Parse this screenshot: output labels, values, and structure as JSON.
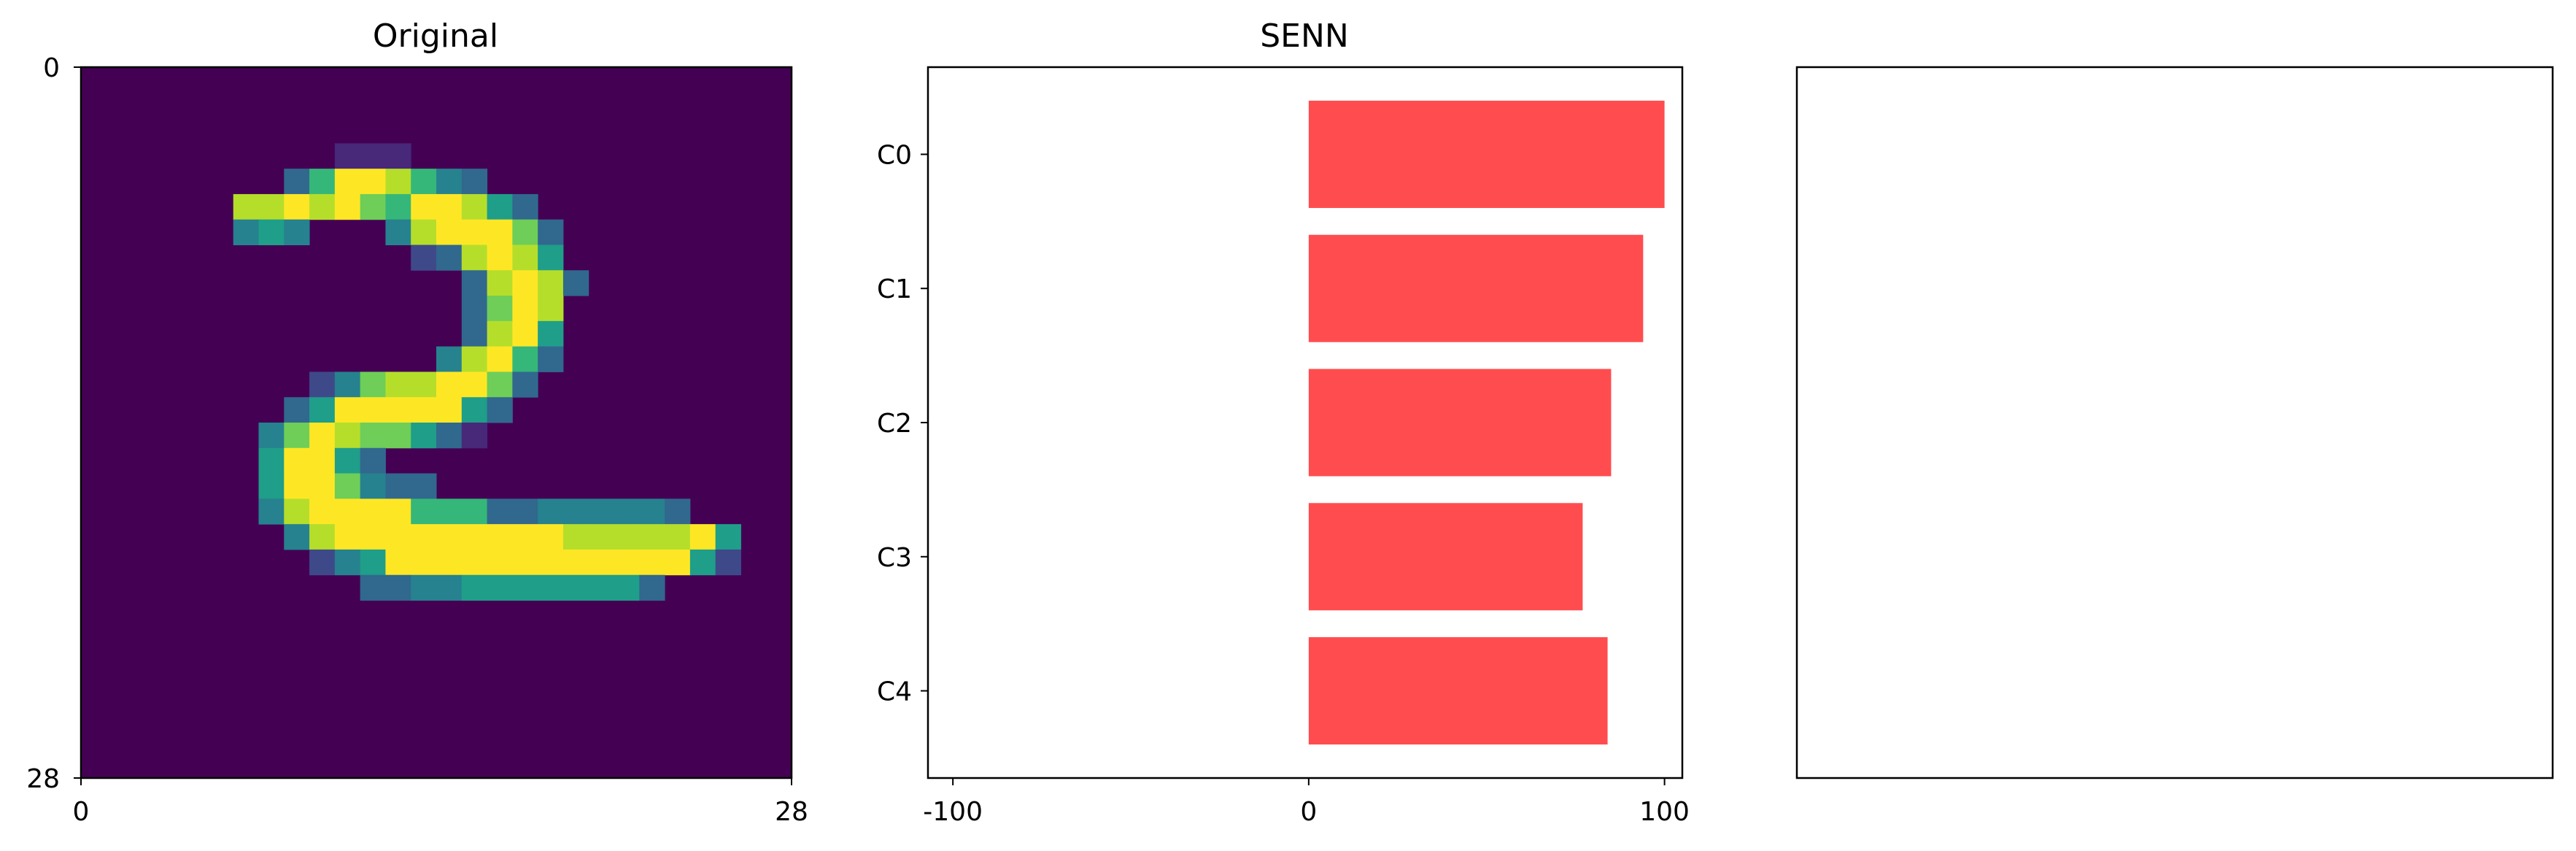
{
  "colors": {
    "bar": "#ff4d4f",
    "viridis": [
      "#440154",
      "#482878",
      "#3e4989",
      "#31688e",
      "#26828e",
      "#1f9e89",
      "#35b779",
      "#6ece58",
      "#b5de2b",
      "#fde725"
    ]
  },
  "chart_data": [
    {
      "type": "heatmap",
      "title": "Original",
      "grid_size": 28,
      "x_ticks": [
        "0",
        "28"
      ],
      "y_ticks": [
        "0",
        "28"
      ],
      "colormap": "viridis",
      "runs": [
        [
          3,
          10,
          13,
          0.15
        ],
        [
          4,
          8,
          9,
          0.35
        ],
        [
          4,
          9,
          10,
          0.65
        ],
        [
          4,
          10,
          12,
          1.0
        ],
        [
          4,
          12,
          13,
          0.9
        ],
        [
          4,
          13,
          14,
          0.7
        ],
        [
          4,
          14,
          15,
          0.4
        ],
        [
          4,
          15,
          16,
          0.3
        ],
        [
          5,
          6,
          7,
          0.85
        ],
        [
          5,
          7,
          8,
          0.9
        ],
        [
          5,
          8,
          9,
          1.0
        ],
        [
          5,
          9,
          10,
          0.85
        ],
        [
          5,
          10,
          11,
          1.0
        ],
        [
          5,
          11,
          12,
          0.8
        ],
        [
          5,
          12,
          13,
          0.65
        ],
        [
          5,
          13,
          14,
          0.95
        ],
        [
          5,
          14,
          15,
          1.0
        ],
        [
          5,
          15,
          16,
          0.9
        ],
        [
          5,
          16,
          17,
          0.55
        ],
        [
          5,
          17,
          18,
          0.3
        ],
        [
          6,
          6,
          7,
          0.45
        ],
        [
          6,
          7,
          8,
          0.55
        ],
        [
          6,
          8,
          9,
          0.4
        ],
        [
          6,
          12,
          13,
          0.4
        ],
        [
          6,
          13,
          14,
          0.85
        ],
        [
          6,
          14,
          17,
          1.0
        ],
        [
          6,
          17,
          18,
          0.75
        ],
        [
          6,
          18,
          19,
          0.3
        ],
        [
          7,
          13,
          14,
          0.2
        ],
        [
          7,
          14,
          15,
          0.35
        ],
        [
          7,
          15,
          16,
          0.9
        ],
        [
          7,
          16,
          17,
          1.0
        ],
        [
          7,
          17,
          18,
          0.9
        ],
        [
          7,
          18,
          19,
          0.6
        ],
        [
          8,
          15,
          16,
          0.3
        ],
        [
          8,
          16,
          17,
          0.85
        ],
        [
          8,
          17,
          18,
          1.0
        ],
        [
          8,
          18,
          19,
          0.9
        ],
        [
          8,
          19,
          20,
          0.35
        ],
        [
          9,
          15,
          16,
          0.3
        ],
        [
          9,
          16,
          17,
          0.8
        ],
        [
          9,
          17,
          18,
          1.0
        ],
        [
          9,
          18,
          19,
          0.85
        ],
        [
          10,
          15,
          16,
          0.3
        ],
        [
          10,
          16,
          17,
          0.85
        ],
        [
          10,
          17,
          18,
          1.0
        ],
        [
          10,
          18,
          19,
          0.6
        ],
        [
          11,
          14,
          15,
          0.45
        ],
        [
          11,
          15,
          16,
          0.9
        ],
        [
          11,
          16,
          17,
          1.0
        ],
        [
          11,
          17,
          18,
          0.65
        ],
        [
          11,
          18,
          19,
          0.3
        ],
        [
          12,
          9,
          10,
          0.2
        ],
        [
          12,
          10,
          11,
          0.45
        ],
        [
          12,
          11,
          12,
          0.75
        ],
        [
          12,
          12,
          13,
          0.85
        ],
        [
          12,
          13,
          14,
          0.9
        ],
        [
          12,
          14,
          15,
          0.95
        ],
        [
          12,
          15,
          16,
          1.0
        ],
        [
          12,
          16,
          17,
          0.8
        ],
        [
          12,
          17,
          18,
          0.3
        ],
        [
          13,
          8,
          9,
          0.3
        ],
        [
          13,
          9,
          10,
          0.6
        ],
        [
          13,
          10,
          14,
          1.0
        ],
        [
          13,
          14,
          15,
          0.95
        ],
        [
          13,
          15,
          16,
          0.6
        ],
        [
          13,
          16,
          17,
          0.3
        ],
        [
          14,
          7,
          8,
          0.45
        ],
        [
          14,
          8,
          9,
          0.75
        ],
        [
          14,
          9,
          10,
          1.0
        ],
        [
          14,
          10,
          11,
          0.85
        ],
        [
          14,
          11,
          13,
          0.75
        ],
        [
          14,
          13,
          14,
          0.5
        ],
        [
          14,
          14,
          15,
          0.3
        ],
        [
          14,
          15,
          16,
          0.15
        ],
        [
          15,
          7,
          8,
          0.55
        ],
        [
          15,
          8,
          10,
          1.0
        ],
        [
          15,
          10,
          11,
          0.6
        ],
        [
          15,
          11,
          12,
          0.3
        ],
        [
          16,
          7,
          8,
          0.55
        ],
        [
          16,
          8,
          10,
          1.0
        ],
        [
          16,
          10,
          11,
          0.75
        ],
        [
          16,
          11,
          12,
          0.4
        ],
        [
          16,
          12,
          13,
          0.35
        ],
        [
          16,
          13,
          14,
          0.3
        ],
        [
          17,
          7,
          8,
          0.4
        ],
        [
          17,
          8,
          9,
          0.9
        ],
        [
          17,
          9,
          13,
          1.0
        ],
        [
          17,
          13,
          16,
          0.7
        ],
        [
          17,
          16,
          17,
          0.35
        ],
        [
          17,
          17,
          18,
          0.3
        ],
        [
          17,
          18,
          23,
          0.45
        ],
        [
          17,
          23,
          24,
          0.3
        ],
        [
          18,
          8,
          9,
          0.4
        ],
        [
          18,
          9,
          10,
          0.85
        ],
        [
          18,
          10,
          19,
          1.0
        ],
        [
          18,
          19,
          20,
          0.85
        ],
        [
          18,
          20,
          22,
          0.9
        ],
        [
          18,
          22,
          23,
          0.85
        ],
        [
          18,
          23,
          24,
          0.9
        ],
        [
          18,
          24,
          25,
          0.95
        ],
        [
          18,
          25,
          26,
          0.6
        ],
        [
          19,
          9,
          10,
          0.2
        ],
        [
          19,
          10,
          11,
          0.45
        ],
        [
          19,
          11,
          12,
          0.6
        ],
        [
          19,
          12,
          23,
          1.0
        ],
        [
          19,
          23,
          24,
          0.95
        ],
        [
          19,
          24,
          25,
          0.5
        ],
        [
          19,
          25,
          26,
          0.25
        ],
        [
          20,
          11,
          12,
          0.3
        ],
        [
          20,
          12,
          13,
          0.35
        ],
        [
          20,
          13,
          15,
          0.45
        ],
        [
          20,
          15,
          21,
          0.55
        ],
        [
          20,
          21,
          22,
          0.5
        ],
        [
          20,
          22,
          23,
          0.3
        ]
      ]
    },
    {
      "type": "bar",
      "orientation": "horizontal",
      "title": "SENN",
      "categories": [
        "C0",
        "C1",
        "C2",
        "C3",
        "C4"
      ],
      "values": [
        100,
        94,
        85,
        77,
        84
      ],
      "xlim": [
        -107,
        105
      ],
      "x_ticks": [
        "-100",
        "0",
        "100"
      ]
    },
    {
      "type": "bar",
      "title": "",
      "categories": [],
      "values": []
    }
  ]
}
